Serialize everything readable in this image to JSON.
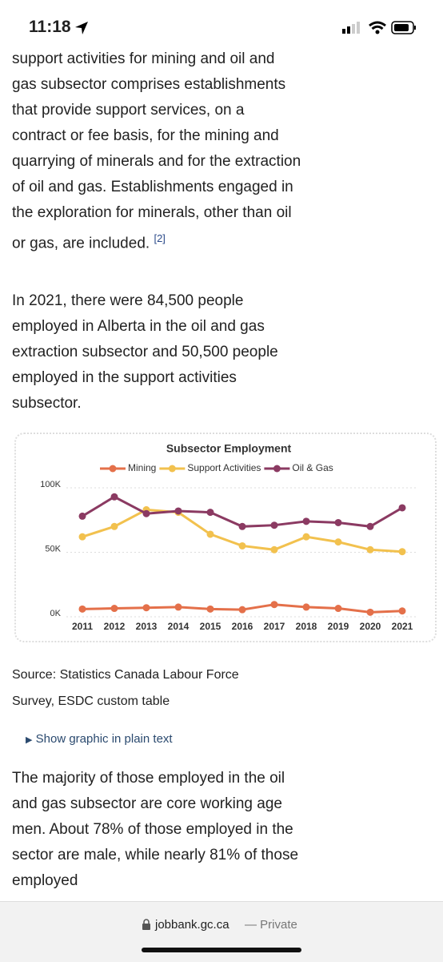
{
  "status_bar": {
    "time": "11:18"
  },
  "paragraphs": [
    {
      "text": "support activities for mining and oil and gas subsector comprises establishments that provide support services, on a contract or fee basis, for the mining and quarrying of minerals and for the extraction of oil and gas. Establishments engaged in the exploration for minerals, other than oil or gas, are included.",
      "footnote": "[2]"
    },
    {
      "text": "In 2021, there were 84,500 people employed in Alberta in the oil and gas extraction subsector and 50,500 people employed in the support activities subsector."
    }
  ],
  "chart_data": {
    "type": "line",
    "title": "Subsector Employment",
    "categories": [
      "2011",
      "2012",
      "2013",
      "2014",
      "2015",
      "2016",
      "2017",
      "2018",
      "2019",
      "2020",
      "2021"
    ],
    "series": [
      {
        "name": "Mining",
        "color": "#e4704a",
        "values": [
          6000,
          6500,
          7000,
          7500,
          6000,
          5500,
          9500,
          7500,
          6500,
          3500,
          4500
        ]
      },
      {
        "name": "Support Activities",
        "color": "#f2c14e",
        "values": [
          62000,
          70000,
          83000,
          81000,
          64000,
          55000,
          52000,
          62000,
          58000,
          52000,
          50500
        ]
      },
      {
        "name": "Oil & Gas",
        "color": "#8b3a62",
        "values": [
          78000,
          93000,
          80000,
          82000,
          81000,
          70000,
          71000,
          74000,
          73000,
          70000,
          84500
        ]
      }
    ],
    "ylim": [
      0,
      100000
    ],
    "yticks": [
      {
        "value": 0,
        "label": "0K"
      },
      {
        "value": 50000,
        "label": "50K"
      },
      {
        "value": 100000,
        "label": "100K"
      }
    ],
    "grid": true,
    "legend": "top"
  },
  "source": {
    "line1": "Source: Statistics Canada Labour Force",
    "line2": "Survey, ESDC custom table"
  },
  "details": "Show graphic in plain text",
  "paragraph3": "The majority of those employed in the oil and gas subsector are core working age men. About 78% of those employed in the sector are male, while nearly 81% of those employed",
  "footer": {
    "domain": "jobbank.gc.ca",
    "mode": "— Private"
  }
}
